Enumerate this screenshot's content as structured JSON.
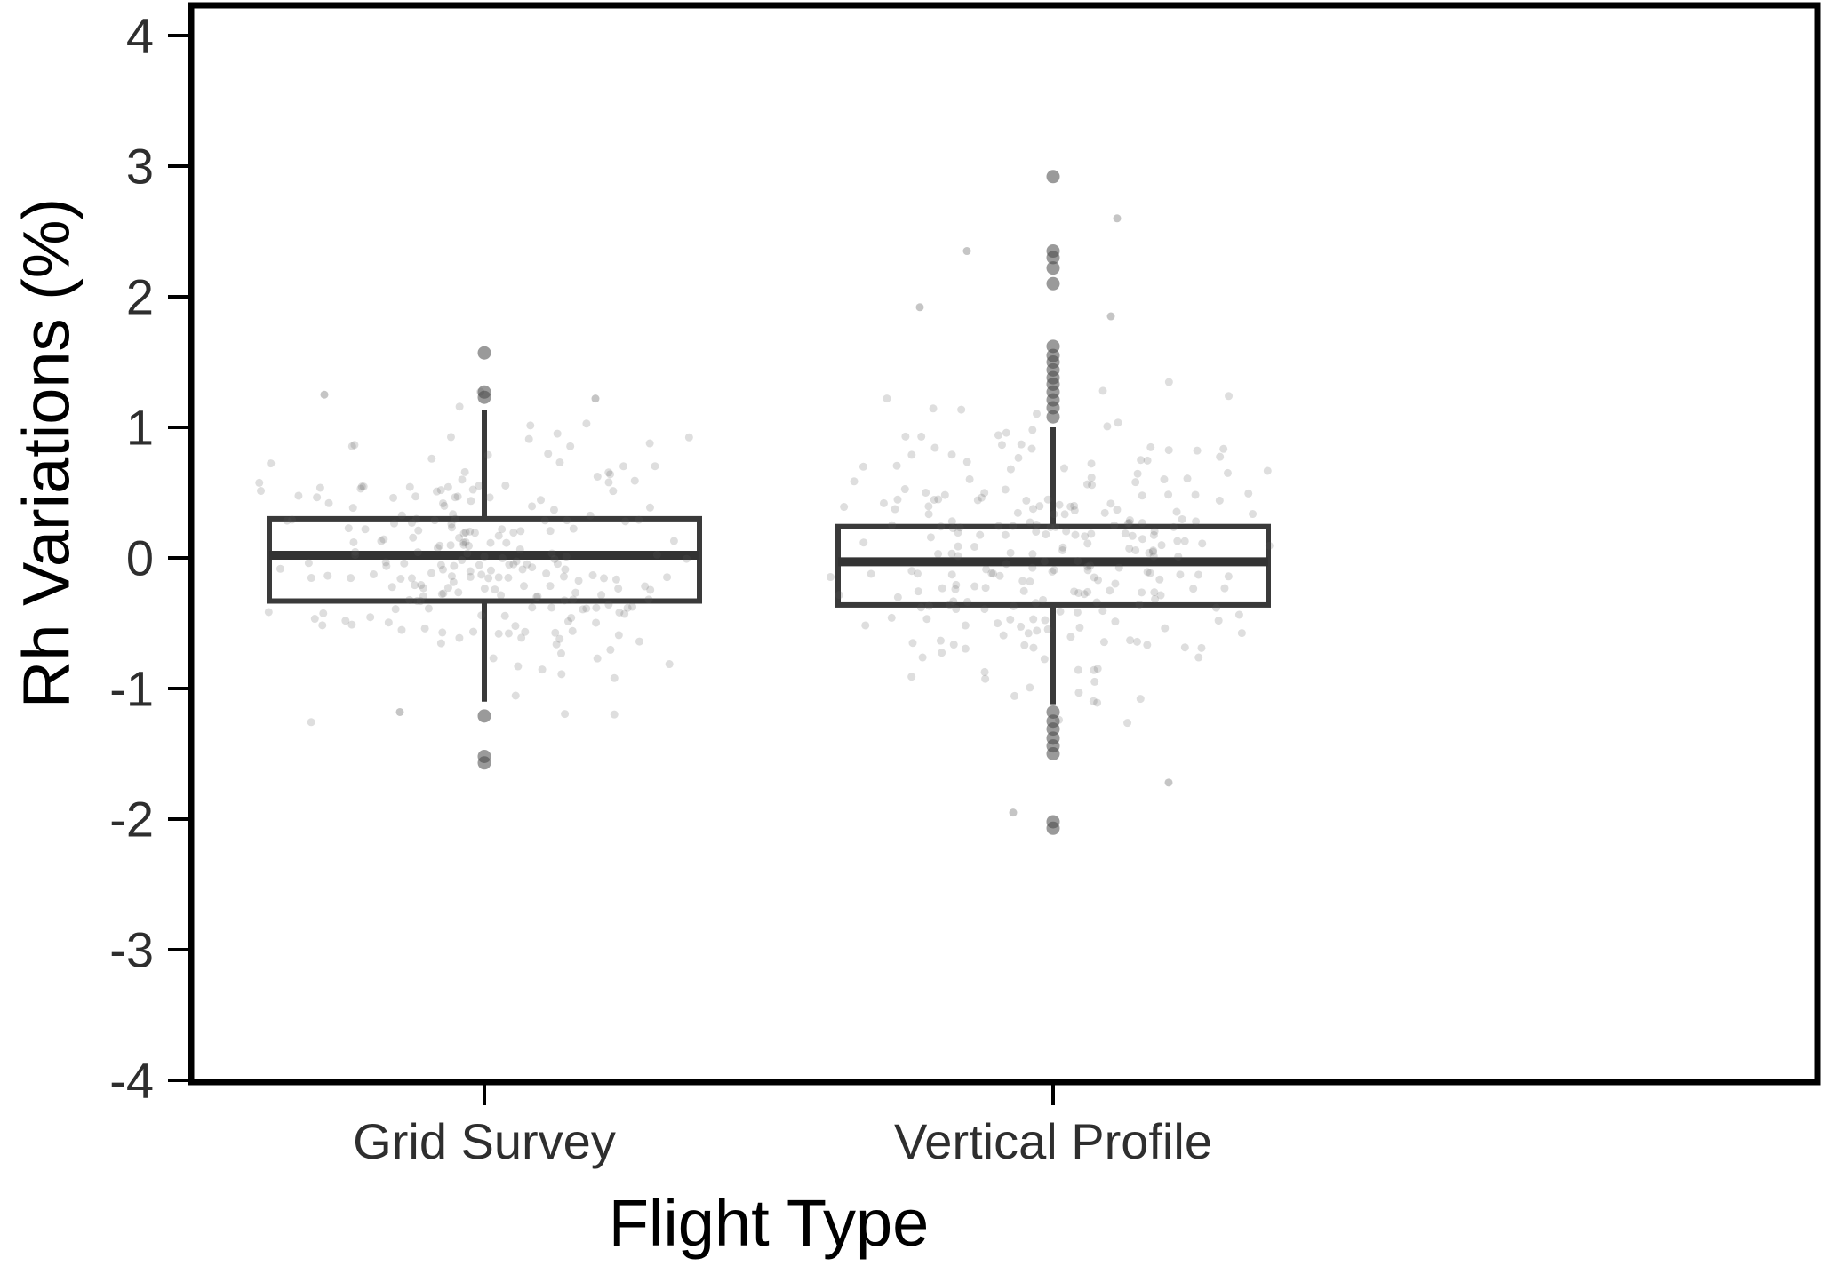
{
  "chart_data": {
    "type": "boxplot_jitter",
    "title": "",
    "xlabel": "Flight Type",
    "ylabel": "Rh Variations (%)",
    "ylim": [
      -4.3,
      4.3
    ],
    "yticks": [
      4,
      3,
      2,
      1,
      0,
      -1,
      -2,
      -3,
      -4
    ],
    "categories": [
      "Grid Survey",
      "Vertical Profile"
    ],
    "series": [
      {
        "name": "Grid Survey",
        "box": {
          "q1": -0.33,
          "median": 0.02,
          "q3": 0.3,
          "whisker_low": -1.1,
          "whisker_high": 1.13
        },
        "outliers": [
          1.57,
          1.27,
          1.23,
          -1.21,
          -1.52,
          -1.57
        ],
        "jitter": {
          "n": 235,
          "sd": 0.48,
          "y_clip": [
            -1.28,
            1.32
          ],
          "seed": 7,
          "extra": [
            [
              -180,
              1.25
            ],
            [
              125,
              1.22
            ],
            [
              -95,
              -1.18
            ]
          ]
        }
      },
      {
        "name": "Vertical Profile",
        "box": {
          "q1": -0.36,
          "median": -0.03,
          "q3": 0.24,
          "whisker_low": -1.12,
          "whisker_high": 1.0
        },
        "outliers": [
          2.92,
          2.35,
          2.3,
          2.22,
          2.1,
          1.62,
          1.55,
          1.5,
          1.44,
          1.38,
          1.33,
          1.27,
          1.21,
          1.15,
          1.08,
          -1.18,
          -1.25,
          -1.31,
          -1.38,
          -1.44,
          -1.5,
          -2.02,
          -2.07
        ],
        "jitter": {
          "n": 255,
          "sd": 0.55,
          "y_clip": [
            -1.55,
            1.58
          ],
          "seed": 13,
          "extra": [
            [
              -97,
              2.35
            ],
            [
              72,
              2.6
            ],
            [
              -150,
              1.92
            ],
            [
              65,
              1.85
            ],
            [
              -45,
              -1.95
            ],
            [
              130,
              -1.72
            ]
          ]
        }
      }
    ],
    "style": {
      "box_color": "#3a3a3a",
      "median_color": "#333333",
      "outlier_color": "#474747",
      "jitter_color": "#5a5a5a",
      "axis_color": "#000000",
      "tick_label_color": "#2e2e2e",
      "title_color": "#000000",
      "panel_background": "#ffffff"
    },
    "layout": {
      "legend": false,
      "grid": false
    }
  }
}
